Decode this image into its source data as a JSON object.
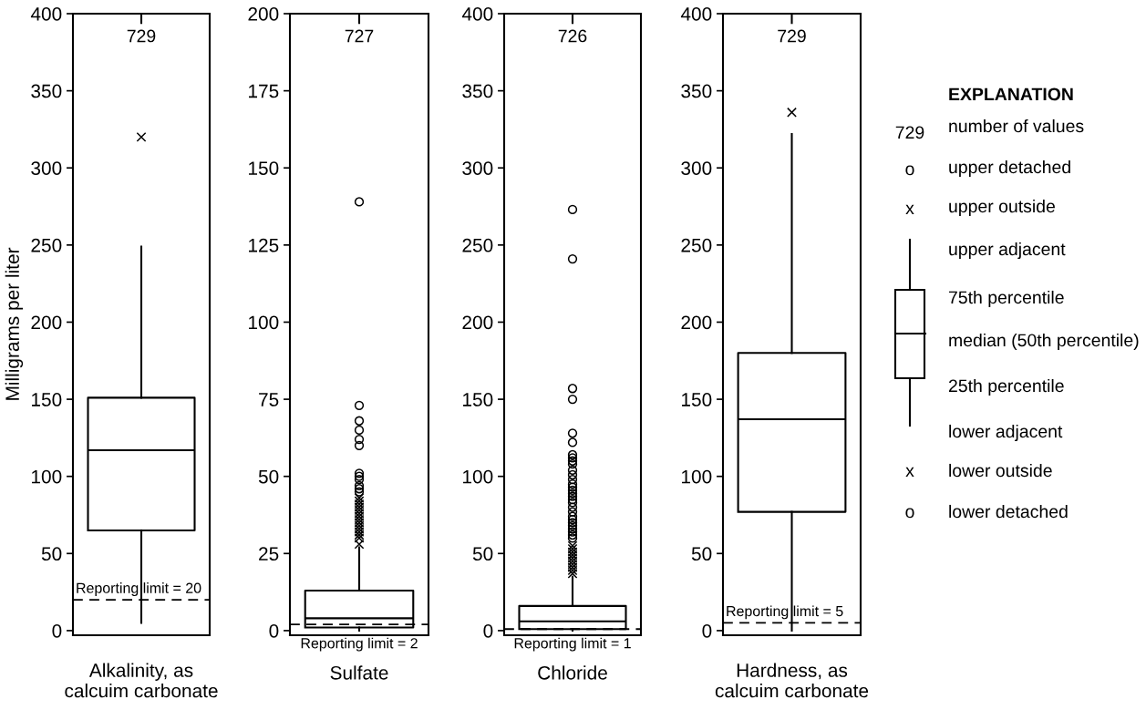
{
  "chart_data": [
    {
      "type": "box",
      "ylabel": "Milligrams per liter",
      "categories": [
        "Alkalinity, as\ncalcuim carbonate"
      ],
      "ylim": [
        -3,
        400
      ],
      "yticks": [
        0,
        50,
        100,
        150,
        200,
        250,
        300,
        350,
        400
      ],
      "grid": false,
      "legend": false,
      "series": [
        {
          "type": "box",
          "color": "#000000",
          "boxes": [
            {
              "low": 5,
              "q1": 65,
              "median": 117,
              "q3": 151,
              "high": 249
            }
          ]
        },
        {
          "type": "scatter",
          "marker": "cross",
          "color": "#000000",
          "x": [
            "Alkalinity, as\ncalcuim carbonate"
          ],
          "values": [
            320
          ]
        }
      ],
      "ref_lines": [
        {
          "axis": "y",
          "value": 20,
          "label": "Reporting limit = 20",
          "line_style": "dashed",
          "color": "#000000"
        }
      ],
      "annotations": [
        "729"
      ]
    },
    {
      "type": "box",
      "categories": [
        "Sulfate"
      ],
      "ylim": [
        -1.5,
        200
      ],
      "yticks": [
        0,
        25,
        50,
        75,
        100,
        125,
        150,
        175,
        200
      ],
      "grid": false,
      "legend": false,
      "series": [
        {
          "type": "box",
          "color": "#000000",
          "boxes": [
            {
              "low": 0,
              "q1": 1,
              "median": 4,
              "q3": 13,
              "high": 27
            }
          ]
        },
        {
          "type": "scatter",
          "marker": "cross",
          "color": "#000000",
          "x": [
            "Sulfate",
            "Sulfate",
            "Sulfate",
            "Sulfate",
            "Sulfate",
            "Sulfate",
            "Sulfate",
            "Sulfate",
            "Sulfate",
            "Sulfate",
            "Sulfate",
            "Sulfate",
            "Sulfate",
            "Sulfate",
            "Sulfate"
          ],
          "values": [
            28,
            30,
            31,
            32,
            33,
            34,
            35,
            36,
            37,
            38,
            39,
            40,
            41,
            42,
            43
          ]
        },
        {
          "type": "scatter",
          "marker": "circle",
          "color": "#000000",
          "x": [
            "Sulfate",
            "Sulfate",
            "Sulfate",
            "Sulfate",
            "Sulfate",
            "Sulfate",
            "Sulfate",
            "Sulfate",
            "Sulfate",
            "Sulfate",
            "Sulfate",
            "Sulfate"
          ],
          "values": [
            45,
            46,
            47,
            49,
            50,
            51,
            60,
            62,
            65,
            68,
            73,
            139
          ]
        }
      ],
      "ref_lines": [
        {
          "axis": "y",
          "value": 2,
          "label": "Reporting limit = 2",
          "line_style": "dashed",
          "color": "#000000"
        }
      ],
      "annotations": [
        "727"
      ]
    },
    {
      "type": "box",
      "categories": [
        "Chloride"
      ],
      "ylim": [
        -3,
        400
      ],
      "yticks": [
        0,
        50,
        100,
        150,
        200,
        250,
        300,
        350,
        400
      ],
      "grid": false,
      "legend": false,
      "series": [
        {
          "type": "box",
          "color": "#000000",
          "boxes": [
            {
              "low": 0,
              "q1": 1,
              "median": 6,
              "q3": 16,
              "high": 35
            }
          ]
        },
        {
          "type": "scatter",
          "marker": "cross",
          "color": "#000000",
          "x": [
            "Chloride",
            "Chloride",
            "Chloride",
            "Chloride",
            "Chloride",
            "Chloride",
            "Chloride",
            "Chloride",
            "Chloride",
            "Chloride"
          ],
          "values": [
            37,
            39,
            41,
            43,
            45,
            47,
            49,
            51,
            53,
            55
          ]
        },
        {
          "type": "scatter",
          "marker": "circle",
          "color": "#000000",
          "x": [
            "Chloride",
            "Chloride",
            "Chloride",
            "Chloride",
            "Chloride",
            "Chloride",
            "Chloride",
            "Chloride",
            "Chloride",
            "Chloride",
            "Chloride",
            "Chloride",
            "Chloride",
            "Chloride",
            "Chloride",
            "Chloride",
            "Chloride",
            "Chloride",
            "Chloride",
            "Chloride",
            "Chloride",
            "Chloride",
            "Chloride",
            "Chloride",
            "Chloride",
            "Chloride",
            "Chloride",
            "Chloride",
            "Chloride",
            "Chloride"
          ],
          "values": [
            60,
            62,
            64,
            66,
            68,
            70,
            72,
            74,
            77,
            80,
            83,
            85,
            87,
            89,
            91,
            93,
            95,
            98,
            101,
            104,
            108,
            110,
            112,
            114,
            122,
            128,
            150,
            157,
            241,
            273
          ]
        }
      ],
      "ref_lines": [
        {
          "axis": "y",
          "value": 1,
          "label": "Reporting limit = 1",
          "line_style": "dashed",
          "color": "#000000"
        }
      ],
      "annotations": [
        "726"
      ]
    },
    {
      "type": "box",
      "categories": [
        "Hardness, as\ncalcuim carbonate"
      ],
      "ylim": [
        -3,
        400
      ],
      "yticks": [
        0,
        50,
        100,
        150,
        200,
        250,
        300,
        350,
        400
      ],
      "grid": false,
      "legend": false,
      "series": [
        {
          "type": "box",
          "color": "#000000",
          "boxes": [
            {
              "low": 0,
              "q1": 77,
              "median": 137,
              "q3": 180,
              "high": 322
            }
          ]
        },
        {
          "type": "scatter",
          "marker": "cross",
          "color": "#000000",
          "x": [
            "Hardness, as\ncalcuim carbonate"
          ],
          "values": [
            336
          ]
        }
      ],
      "ref_lines": [
        {
          "axis": "y",
          "value": 5,
          "label": "Reporting limit = 5",
          "line_style": "dashed",
          "color": "#000000"
        }
      ],
      "annotations": [
        "729"
      ]
    },
    {
      "type": "other",
      "title": "EXPLANATION",
      "annotations": [
        "729",
        "number of values",
        "o",
        "upper detached",
        "x",
        "upper outside",
        "upper adjacent",
        "75th percentile",
        "median (50th percentile)",
        "25th percentile",
        "lower adjacent",
        "x",
        "lower outside",
        "o",
        "lower detached"
      ]
    }
  ]
}
